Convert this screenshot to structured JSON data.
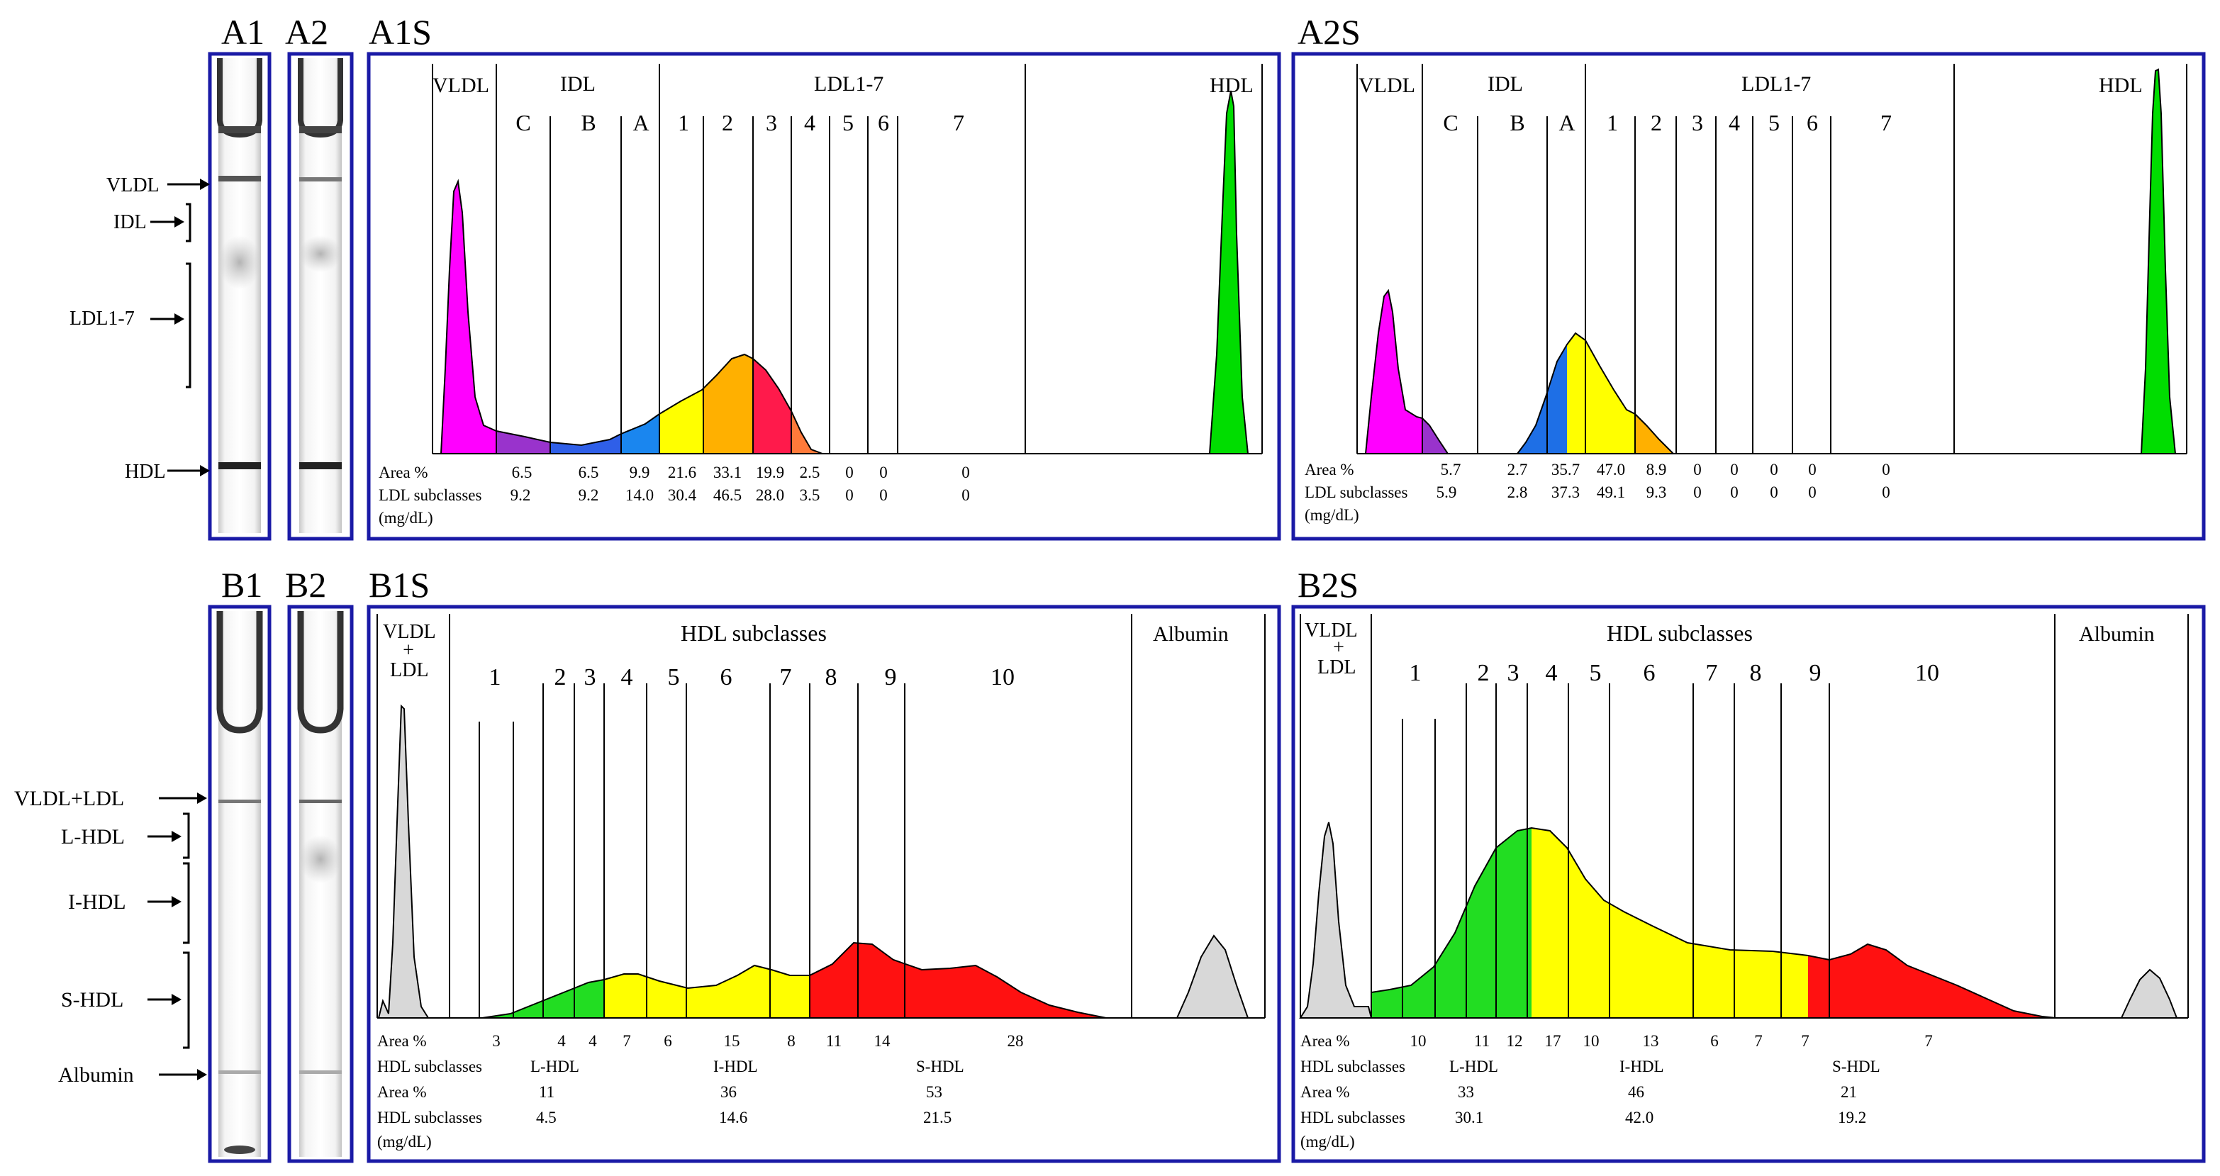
{
  "panel_labels": {
    "a1": "A1",
    "a2": "A2",
    "a1s": "A1S",
    "a2s": "A2S",
    "b1": "B1",
    "b2": "B2",
    "b1s": "B1S",
    "b2s": "B2S"
  },
  "gel_labels_a": {
    "vldl": "VLDL",
    "idl": "IDL",
    "ldl": "LDL1-7",
    "hdl": "HDL"
  },
  "gel_labels_b": {
    "vldl_ldl": "VLDL+LDL",
    "lhdl": "L-HDL",
    "ihdl": "I-HDL",
    "shdl": "S-HDL",
    "albumin": "Albumin"
  },
  "ldl_header": {
    "vldl": "VLDL",
    "idl": "IDL",
    "ldl": "LDL1-7",
    "hdl": "HDL",
    "sub": [
      "C",
      "B",
      "A",
      "1",
      "2",
      "3",
      "4",
      "5",
      "6",
      "7"
    ]
  },
  "hdl_header": {
    "vldl": "VLDL",
    "plus": "+",
    "ldl": "LDL",
    "hdl": "HDL subclasses",
    "albumin": "Albumin",
    "sub": [
      "1",
      "2",
      "3",
      "4",
      "5",
      "6",
      "7",
      "8",
      "9",
      "10"
    ]
  },
  "ldl_table": {
    "area_label": "Area %",
    "sub_label": "LDL subclasses",
    "unit_label": "(mg/dL)"
  },
  "hdl_table": {
    "area_label": "Area %",
    "sub_label": "HDL subclasses",
    "area2_label": "Area %",
    "sub2_label": "HDL subclasses",
    "unit_label": "(mg/dL)",
    "groups": [
      "L-HDL",
      "I-HDL",
      "S-HDL"
    ]
  },
  "panels": {
    "a1s": {
      "area": [
        "6.5",
        "6.5",
        "9.9",
        "21.6",
        "33.1",
        "19.9",
        "2.5",
        "0",
        "0",
        "0"
      ],
      "conc": [
        "9.2",
        "9.2",
        "14.0",
        "30.4",
        "46.5",
        "28.0",
        "3.5",
        "0",
        "0",
        "0"
      ]
    },
    "a2s": {
      "area": [
        "5.7",
        "2.7",
        "35.7",
        "47.0",
        "8.9",
        "0",
        "0",
        "0",
        "0",
        "0"
      ],
      "conc": [
        "5.9",
        "2.8",
        "37.3",
        "49.1",
        "9.3",
        "0",
        "0",
        "0",
        "0",
        "0"
      ]
    },
    "b1s": {
      "area": [
        "3",
        "4",
        "4",
        "7",
        "6",
        "15",
        "8",
        "11",
        "14",
        "28"
      ],
      "group_area": [
        "11",
        "36",
        "53"
      ],
      "group_conc": [
        "4.5",
        "14.6",
        "21.5"
      ]
    },
    "b2s": {
      "area": [
        "10",
        "11",
        "12",
        "17",
        "10",
        "13",
        "6",
        "7",
        "7",
        "7"
      ],
      "group_area": [
        "33",
        "46",
        "21"
      ],
      "group_conc": [
        "30.1",
        "42.0",
        "19.2"
      ]
    }
  },
  "colors": {
    "frame": "#1a1aa6",
    "vldl": "#ff00ff",
    "idl_c": "#9933cc",
    "idl_b": "#3366ff",
    "idl_a": "#1e6fe6",
    "ldl1": "#ffff00",
    "ldl2": "#ffb000",
    "ldl3": "#ff1a4b",
    "ldl4": "#ff7a3a",
    "hdl_peak": "#00dd00",
    "lhdl": "#22dd22",
    "ihdl": "#ffff00",
    "shdl": "#ff1111",
    "grey": "#d8d8d8"
  }
}
